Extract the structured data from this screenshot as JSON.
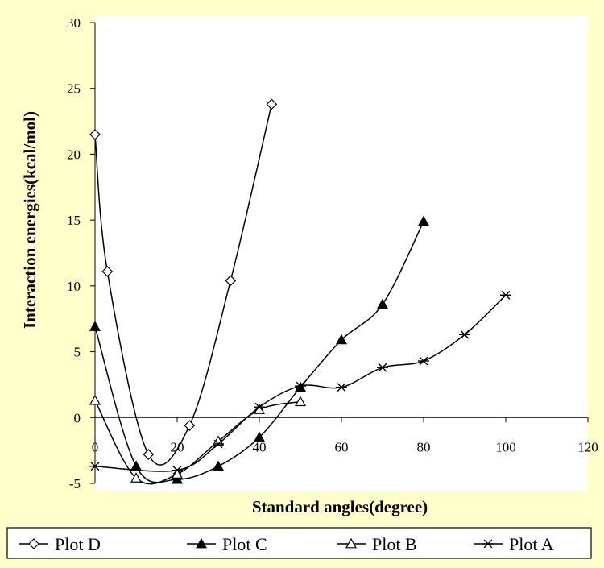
{
  "chart_data": {
    "type": "line",
    "xlabel": "Standard angles(degree)",
    "ylabel": "Interaction energies(kcal/mol)",
    "xlim": [
      0,
      120
    ],
    "ylim": [
      -5,
      30
    ],
    "x_ticks": [
      0,
      20,
      40,
      60,
      80,
      100,
      120
    ],
    "y_ticks": [
      -5,
      0,
      5,
      10,
      15,
      20,
      25,
      30
    ],
    "grid": false,
    "smooth": true,
    "legend_position": "bottom",
    "background_color": "#ffffcc",
    "plot_background_color": "#ffffff",
    "series": [
      {
        "name": "Plot D",
        "marker": "diamond-open",
        "x": [
          0,
          3,
          13,
          23,
          33,
          43
        ],
        "y": [
          21.5,
          11.1,
          -2.8,
          -0.6,
          10.4,
          23.8
        ]
      },
      {
        "name": "Plot C",
        "marker": "triangle-filled",
        "x": [
          0,
          10,
          20,
          30,
          40,
          50,
          60,
          70,
          80
        ],
        "y": [
          6.9,
          -3.7,
          -4.7,
          -3.7,
          -1.5,
          2.3,
          5.9,
          8.6,
          14.9
        ]
      },
      {
        "name": "Plot B",
        "marker": "triangle-open",
        "x": [
          0,
          10,
          20,
          30,
          40,
          50
        ],
        "y": [
          1.3,
          -4.6,
          -4.3,
          -1.8,
          0.6,
          1.2
        ]
      },
      {
        "name": "Plot A",
        "marker": "asterisk",
        "x": [
          0,
          20,
          30,
          40,
          50,
          60,
          70,
          80,
          90,
          100
        ],
        "y": [
          -3.7,
          -4.0,
          -2.0,
          0.8,
          2.4,
          2.3,
          3.8,
          4.3,
          6.3,
          9.3
        ]
      }
    ]
  }
}
